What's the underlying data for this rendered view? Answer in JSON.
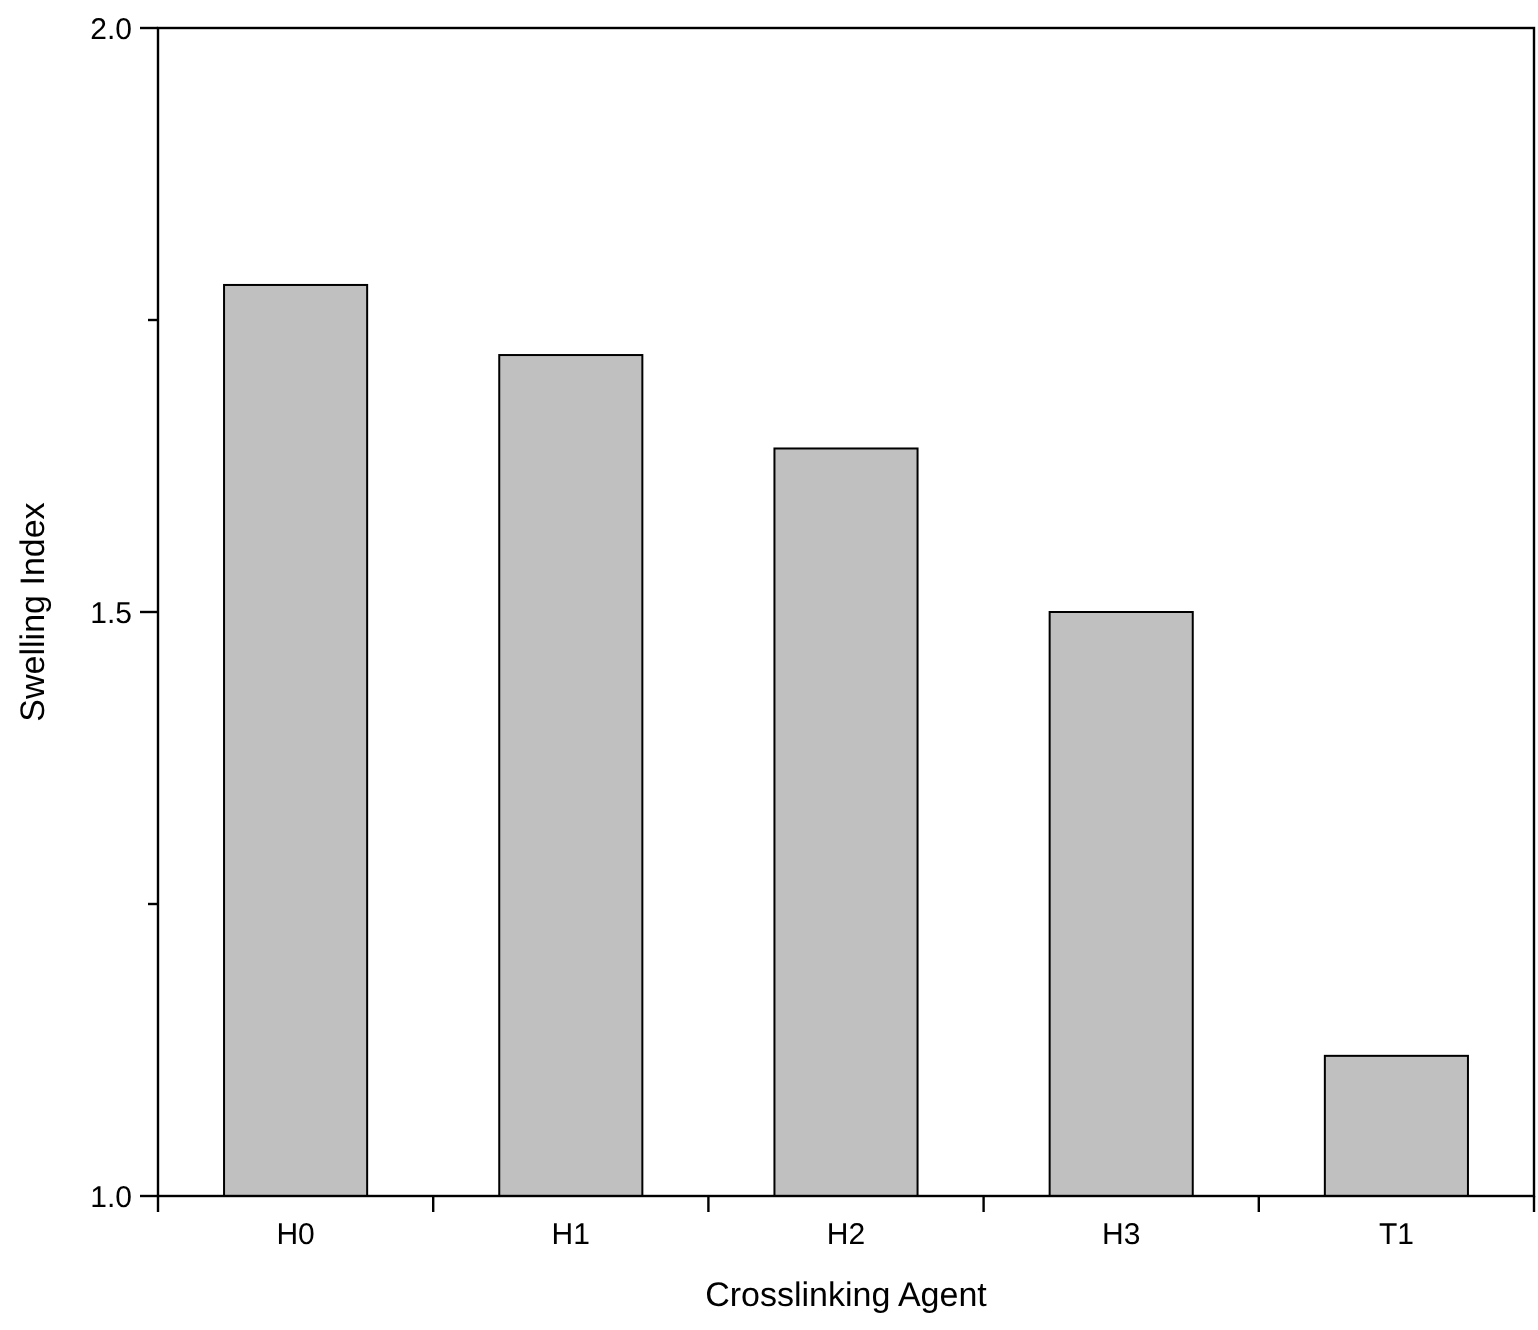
{
  "chart_data": {
    "type": "bar",
    "xlabel": "Crosslinking Agent",
    "ylabel": "Swelling Index",
    "categories": [
      "H0",
      "H1",
      "H2",
      "H3",
      "T1"
    ],
    "values": [
      1.78,
      1.72,
      1.64,
      1.5,
      1.12
    ],
    "color": "#c0c0c0",
    "ylim": [
      1,
      2
    ],
    "yticks": [
      {
        "value": 1,
        "label": "1.0"
      },
      {
        "value": 1.25,
        "label": null
      },
      {
        "value": 1.5,
        "label": "1.5"
      },
      {
        "value": 1.75,
        "label": null
      },
      {
        "value": 2,
        "label": "2.0"
      }
    ],
    "grid": false
  }
}
